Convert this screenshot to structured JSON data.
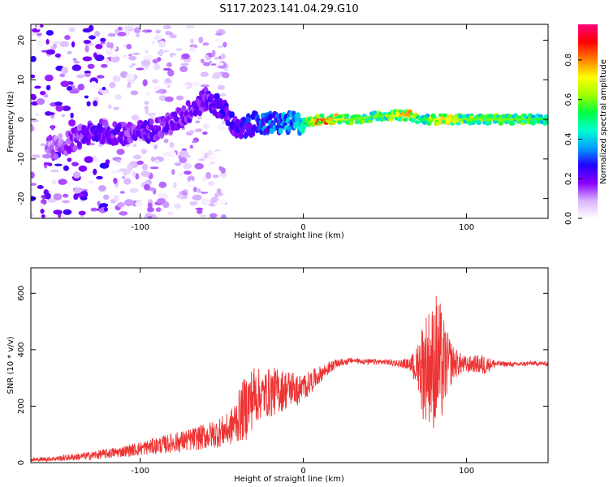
{
  "title": "S117.2023.141.04.29.G10",
  "chart_data": [
    {
      "type": "heatmap",
      "xlabel": "Height of straight line (km)",
      "ylabel": "Frequency (Hz)",
      "xlim": [
        -167,
        150
      ],
      "ylim": [
        -25,
        24
      ],
      "xticks": [
        -100,
        0,
        100
      ],
      "yticks": [
        -20,
        -10,
        0,
        10,
        20
      ],
      "colorbar": {
        "label": "Normalized spectral amplitude",
        "range": [
          0,
          0.98
        ],
        "ticks": [
          0.0,
          0.2,
          0.4,
          0.6,
          0.8
        ],
        "colormap": [
          "#ffffff",
          "#d8b4ff",
          "#8a00ff",
          "#2200ff",
          "#00a0ff",
          "#00ffd0",
          "#00ff40",
          "#a0ff00",
          "#ffff00",
          "#ff8000",
          "#ff0000",
          "#ff0080"
        ]
      },
      "ridge": [
        {
          "x": -150,
          "y": -7,
          "amp": 0.15
        },
        {
          "x": -135,
          "y": -4,
          "amp": 0.2
        },
        {
          "x": -125,
          "y": -3,
          "amp": 0.25
        },
        {
          "x": -110,
          "y": -4,
          "amp": 0.2
        },
        {
          "x": -95,
          "y": -3,
          "amp": 0.22
        },
        {
          "x": -80,
          "y": -1,
          "amp": 0.2
        },
        {
          "x": -70,
          "y": 2,
          "amp": 0.2
        },
        {
          "x": -60,
          "y": 5,
          "amp": 0.22
        },
        {
          "x": -50,
          "y": 3,
          "amp": 0.25
        },
        {
          "x": -40,
          "y": -3,
          "amp": 0.25
        },
        {
          "x": -30,
          "y": -1,
          "amp": 0.3
        },
        {
          "x": -20,
          "y": -1,
          "amp": 0.35
        },
        {
          "x": -10,
          "y": -1,
          "amp": 0.4
        },
        {
          "x": 0,
          "y": -1,
          "amp": 0.45
        },
        {
          "x": 10,
          "y": 0,
          "amp": 0.85
        },
        {
          "x": 30,
          "y": 0,
          "amp": 0.6
        },
        {
          "x": 50,
          "y": 1,
          "amp": 0.6
        },
        {
          "x": 65,
          "y": 1,
          "amp": 0.8
        },
        {
          "x": 72,
          "y": 0,
          "amp": 0.5
        },
        {
          "x": 85,
          "y": 0,
          "amp": 0.75
        },
        {
          "x": 100,
          "y": 0,
          "amp": 0.6
        },
        {
          "x": 115,
          "y": 0,
          "amp": 0.6
        },
        {
          "x": 130,
          "y": 0,
          "amp": 0.6
        },
        {
          "x": 150,
          "y": 0,
          "amp": 0.55
        }
      ]
    },
    {
      "type": "line",
      "xlabel": "Height of straight line (km)",
      "ylabel": "SNR (10 * v/v)",
      "xlim": [
        -167,
        150
      ],
      "ylim": [
        0,
        690
      ],
      "xticks": [
        -100,
        0,
        100
      ],
      "yticks": [
        0,
        200,
        400,
        600
      ],
      "color": "#ee3333",
      "series": [
        {
          "x": [
            -167,
            -150,
            -130,
            -110,
            -90,
            -70,
            -55,
            -45,
            -40,
            -35,
            -30,
            -25,
            -20,
            -15,
            -10,
            -5,
            0,
            5,
            10,
            15,
            20,
            25,
            30,
            40,
            50,
            60,
            65,
            70,
            73,
            76,
            79,
            82,
            85,
            88,
            92,
            96,
            100,
            105,
            110,
            115,
            120,
            130,
            140,
            150
          ],
          "y": [
            10,
            15,
            25,
            40,
            60,
            80,
            100,
            120,
            160,
            200,
            240,
            240,
            250,
            255,
            260,
            270,
            280,
            300,
            320,
            340,
            355,
            360,
            365,
            360,
            360,
            355,
            355,
            360,
            330,
            350,
            340,
            360,
            340,
            350,
            355,
            350,
            345,
            350,
            345,
            350,
            350,
            348,
            352,
            350
          ],
          "noise": [
            6,
            10,
            15,
            20,
            30,
            40,
            50,
            60,
            90,
            120,
            110,
            80,
            90,
            80,
            70,
            60,
            50,
            40,
            30,
            25,
            15,
            12,
            10,
            10,
            10,
            15,
            20,
            80,
            180,
            200,
            220,
            260,
            200,
            120,
            60,
            40,
            30,
            30,
            40,
            20,
            10,
            8,
            8,
            8
          ]
        }
      ]
    }
  ]
}
